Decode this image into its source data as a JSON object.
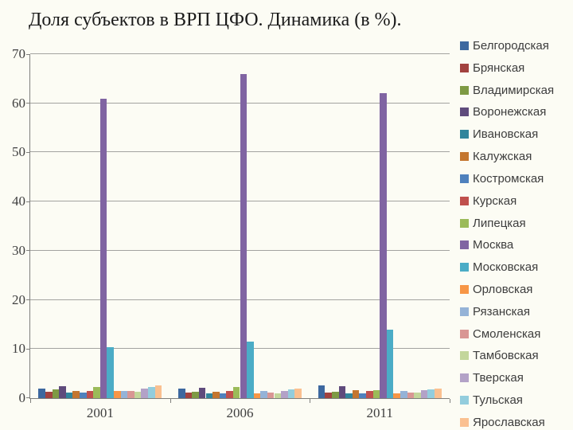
{
  "title": "Доля субъектов в ВРП ЦФО. Динамика (в %).",
  "palette": {
    "background": "#FCFCF4",
    "gridline": "#A3A3A0",
    "axis": "#7F7F7C",
    "title_text": "#1A1A1A",
    "axis_text": "#3F3F3F",
    "legend_text": "#3D3D3D"
  },
  "chart_data": {
    "type": "bar",
    "title": "Доля субъектов в ВРП ЦФО. Динамика (в %).",
    "xlabel": "",
    "ylabel": "",
    "categories": [
      "2001",
      "2006",
      "2011"
    ],
    "ylim": [
      0,
      70
    ],
    "yticks": [
      0,
      10,
      20,
      30,
      40,
      50,
      60,
      70
    ],
    "grid": true,
    "legend_position": "right",
    "series": [
      {
        "name": "Белгородская",
        "color": "#3D689F",
        "values": [
          2.0,
          2.0,
          2.6
        ]
      },
      {
        "name": "Брянская",
        "color": "#A2423F",
        "values": [
          1.3,
          1.2,
          1.1
        ]
      },
      {
        "name": "Владимирская",
        "color": "#7E9A44",
        "values": [
          1.8,
          1.3,
          1.3
        ]
      },
      {
        "name": "Воронежская",
        "color": "#5F4B7C",
        "values": [
          2.5,
          2.1,
          2.5
        ]
      },
      {
        "name": "Ивановская",
        "color": "#31859C",
        "values": [
          1.2,
          0.9,
          0.9
        ]
      },
      {
        "name": "Калужская",
        "color": "#C4762F",
        "values": [
          1.5,
          1.3,
          1.7
        ]
      },
      {
        "name": "Костромская",
        "color": "#4F81BD",
        "values": [
          1.2,
          0.9,
          0.9
        ]
      },
      {
        "name": "Курская",
        "color": "#C0504D",
        "values": [
          1.5,
          1.4,
          1.5
        ]
      },
      {
        "name": "Липецкая",
        "color": "#9BBB59",
        "values": [
          2.2,
          2.2,
          1.7
        ]
      },
      {
        "name": "Москва",
        "color": "#8064A2",
        "values": [
          61.0,
          66.0,
          62.0
        ]
      },
      {
        "name": "Московская",
        "color": "#4BACC6",
        "values": [
          10.4,
          11.5,
          14.0
        ]
      },
      {
        "name": "Орловская",
        "color": "#F79646",
        "values": [
          1.5,
          0.9,
          1.0
        ]
      },
      {
        "name": "Рязанская",
        "color": "#95B3D7",
        "values": [
          1.5,
          1.5,
          1.4
        ]
      },
      {
        "name": "Смоленская",
        "color": "#D99694",
        "values": [
          1.5,
          1.2,
          1.2
        ]
      },
      {
        "name": "Тамбовская",
        "color": "#C3D69B",
        "values": [
          1.3,
          1.0,
          1.2
        ]
      },
      {
        "name": "Тверская",
        "color": "#B3A2C7",
        "values": [
          1.9,
          1.4,
          1.7
        ]
      },
      {
        "name": "Тульская",
        "color": "#93CDDD",
        "values": [
          2.2,
          1.8,
          1.8
        ]
      },
      {
        "name": "Ярославская",
        "color": "#FAC090",
        "values": [
          2.6,
          2.0,
          2.0
        ]
      }
    ]
  }
}
